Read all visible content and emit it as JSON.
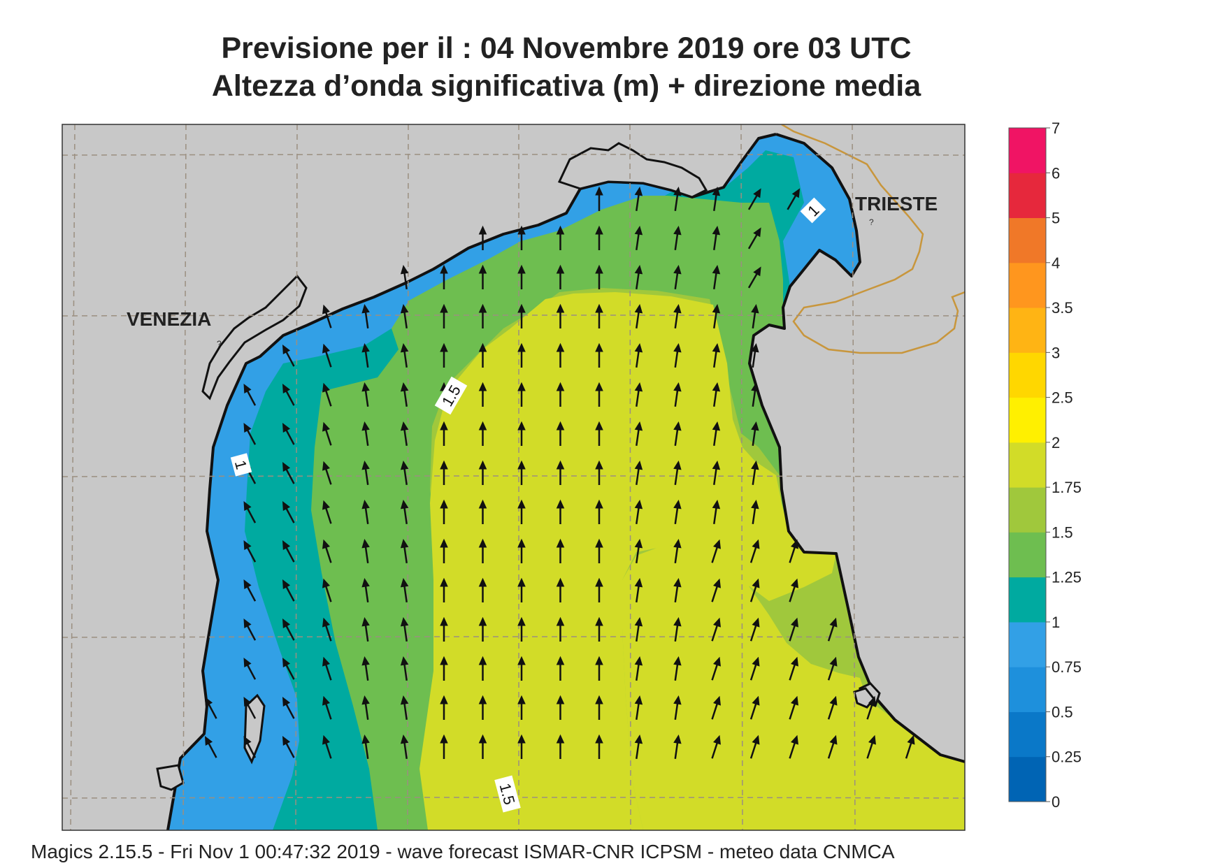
{
  "title": {
    "line1": "Previsione per il  :  04 Novembre  2019   ore 03 UTC",
    "line2": "Altezza d’onda significativa (m) + direzione media"
  },
  "map": {
    "place_labels": [
      "VENEZIA",
      "TRIESTE"
    ],
    "contour_labels": [
      "1",
      "1.5",
      "1",
      "1.5"
    ],
    "unlabeled_marker": "?",
    "land_color": "#c8c8c8",
    "coast_color": "#111111",
    "border_color": "#c8963c",
    "grid_color": "#9b8f80"
  },
  "colorbar": {
    "unit": "m",
    "ticks": [
      "0",
      "0.25",
      "0.5",
      "0.75",
      "1",
      "1.25",
      "1.5",
      "1.75",
      "2",
      "2.5",
      "3",
      "3.5",
      "4",
      "5",
      "6",
      "7"
    ],
    "colors": [
      "#0064b4",
      "#0a78c8",
      "#1e90dc",
      "#32a0e6",
      "#00aaa0",
      "#6ebe50",
      "#a0c83c",
      "#d2dc28",
      "#fff000",
      "#ffd700",
      "#ffb414",
      "#ff961e",
      "#f07828",
      "#e6283c",
      "#f01464"
    ]
  },
  "wave_field": {
    "variable": "significant wave height (m)",
    "direction_arrows": "mean wave direction, mostly toward north",
    "classes": [
      {
        "range": "0.75-1",
        "color": "#32a0e6"
      },
      {
        "range": "1-1.25",
        "color": "#00aaa0"
      },
      {
        "range": "1.25-1.5",
        "color": "#6ebe50"
      },
      {
        "range": "1.5-1.75",
        "color": "#a0c83c"
      },
      {
        "range": "1.75-2",
        "color": "#d2dc28"
      }
    ]
  },
  "footer": "Magics 2.15.5 - Fri Nov  1 00:47:32 2019 - wave forecast  ISMAR-CNR  ICPSM - meteo data   CNMCA"
}
